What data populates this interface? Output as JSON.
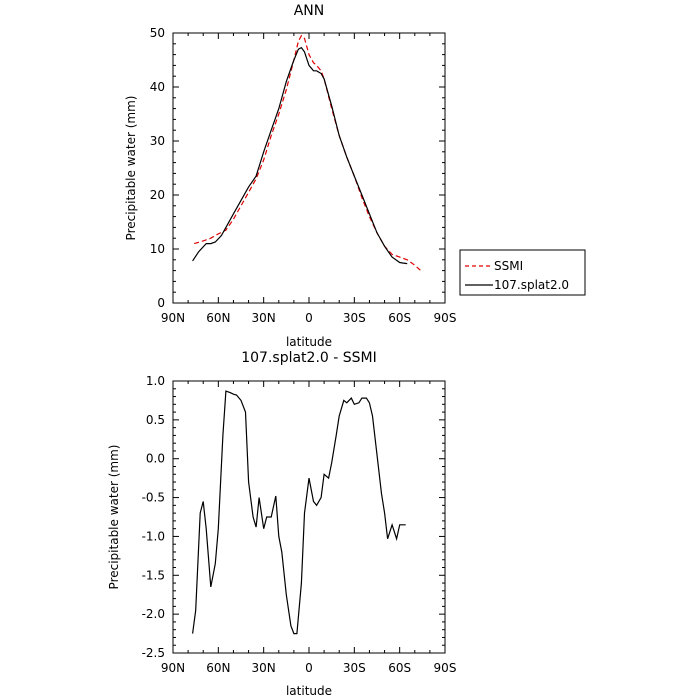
{
  "chart_data": [
    {
      "type": "line",
      "title": "ANN",
      "xlabel": "latitude",
      "ylabel": "Precipitable water (mm)",
      "xlim": [
        90,
        -90
      ],
      "ylim": [
        0,
        50
      ],
      "x_ticks": [
        90,
        60,
        30,
        0,
        -30,
        -60,
        -90
      ],
      "x_tick_labels": [
        "90N",
        "60N",
        "30N",
        "0",
        "30S",
        "60S",
        "90S"
      ],
      "y_ticks": [
        0,
        10,
        20,
        30,
        40,
        50
      ],
      "y_tick_labels": [
        "0",
        "10",
        "20",
        "30",
        "40",
        "50"
      ],
      "legend_position": "right",
      "series": [
        {
          "name": "SSMI",
          "color": "#e00000",
          "dash": "dashed",
          "x": [
            76,
            70,
            65,
            60,
            55,
            50,
            45,
            40,
            35,
            30,
            25,
            20,
            15,
            10,
            7,
            5,
            3,
            0,
            -3,
            -5,
            -8,
            -10,
            -15,
            -20,
            -25,
            -30,
            -35,
            -40,
            -45,
            -50,
            -55,
            -60,
            -65,
            -70,
            -74
          ],
          "y": [
            11,
            11.5,
            12,
            12.8,
            13.5,
            15.5,
            18,
            20.5,
            23,
            26.5,
            31,
            35,
            39.5,
            45,
            48.5,
            49.5,
            49,
            46,
            44.5,
            44,
            43,
            41.5,
            36,
            31,
            27,
            23.5,
            19.5,
            16,
            13,
            10.5,
            9,
            8.5,
            8,
            7,
            6
          ]
        },
        {
          "name": "107.splat2.0",
          "color": "#000000",
          "dash": "solid",
          "x": [
            77,
            73,
            68,
            65,
            62,
            58,
            55,
            50,
            45,
            40,
            35,
            30,
            25,
            20,
            15,
            10,
            7,
            5,
            3,
            0,
            -3,
            -5,
            -8,
            -10,
            -15,
            -20,
            -25,
            -30,
            -35,
            -40,
            -45,
            -50,
            -55,
            -60,
            -62,
            -65
          ],
          "y": [
            7.8,
            9.5,
            11,
            11,
            11.3,
            12.5,
            14,
            16.5,
            19,
            21.5,
            23.5,
            28,
            32,
            36,
            41,
            45,
            47,
            47.3,
            46.5,
            44,
            43,
            43,
            42.5,
            41.5,
            36.5,
            31,
            27,
            23.5,
            20,
            16.5,
            13,
            10.5,
            8.5,
            7.5,
            7.4,
            7.3
          ]
        }
      ]
    },
    {
      "type": "line",
      "title": "107.splat2.0 - SSMI",
      "xlabel": "latitude",
      "ylabel": "Precipitable water (mm)",
      "xlim": [
        90,
        -90
      ],
      "ylim": [
        -2.5,
        1.0
      ],
      "x_ticks": [
        90,
        60,
        30,
        0,
        -30,
        -60,
        -90
      ],
      "x_tick_labels": [
        "90N",
        "60N",
        "30N",
        "0",
        "30S",
        "60S",
        "90S"
      ],
      "y_ticks": [
        -2.5,
        -2.0,
        -1.5,
        -1.0,
        -0.5,
        0.0,
        0.5,
        1.0
      ],
      "y_tick_labels": [
        "-2.5",
        "-2.0",
        "-1.5",
        "-1.0",
        "-0.5",
        "0.0",
        "0.5",
        "1.0"
      ],
      "series": [
        {
          "color": "#000000",
          "dash": "solid",
          "x": [
            77,
            75,
            72,
            70,
            68,
            65,
            62,
            60,
            57,
            55,
            52,
            50,
            48,
            45,
            42,
            40,
            37,
            35,
            33,
            30,
            28,
            25,
            22,
            20,
            18,
            15,
            12,
            10,
            8,
            5,
            3,
            0,
            -3,
            -5,
            -8,
            -10,
            -13,
            -15,
            -18,
            -20,
            -23,
            -25,
            -28,
            -30,
            -33,
            -35,
            -38,
            -40,
            -42,
            -45,
            -48,
            -50,
            -52,
            -55,
            -58,
            -60,
            -62,
            -64
          ],
          "y": [
            -2.25,
            -1.95,
            -0.7,
            -0.55,
            -0.9,
            -1.65,
            -1.35,
            -0.9,
            0.3,
            0.87,
            0.85,
            0.83,
            0.82,
            0.75,
            0.6,
            -0.3,
            -0.75,
            -0.88,
            -0.5,
            -0.9,
            -0.75,
            -0.75,
            -0.48,
            -1.0,
            -1.2,
            -1.75,
            -2.15,
            -2.25,
            -2.25,
            -1.6,
            -0.7,
            -0.25,
            -0.55,
            -0.6,
            -0.5,
            -0.2,
            -0.25,
            -0.05,
            0.3,
            0.55,
            0.75,
            0.72,
            0.78,
            0.7,
            0.72,
            0.78,
            0.78,
            0.72,
            0.55,
            0.05,
            -0.45,
            -0.7,
            -1.03,
            -0.85,
            -1.03,
            -0.85,
            -0.85,
            -0.85
          ]
        }
      ]
    }
  ]
}
